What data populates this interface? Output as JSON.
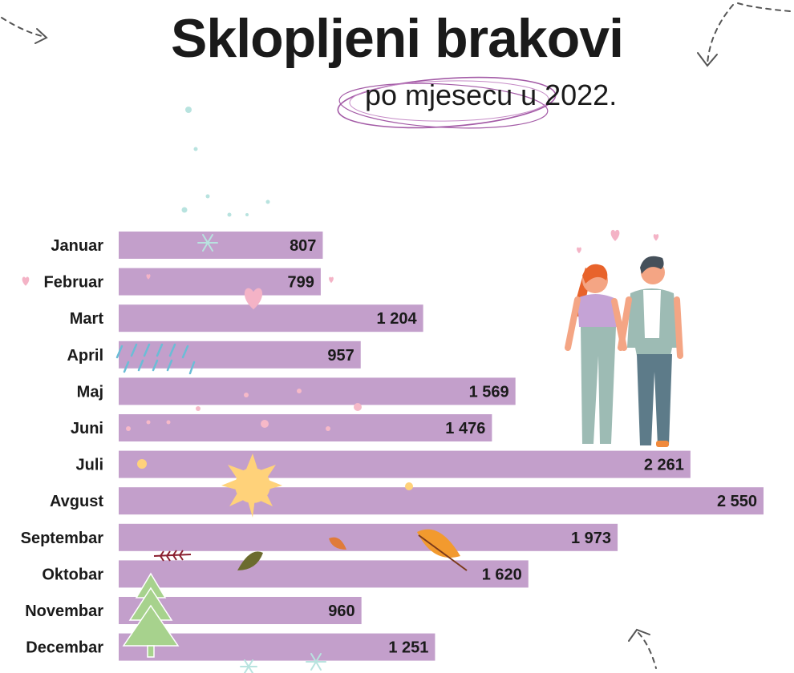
{
  "chart_data": {
    "type": "bar",
    "orientation": "horizontal",
    "title": "Sklopljeni brakovi",
    "subtitle": "po mjesecu u 2022.",
    "categories": [
      "Januar",
      "Februar",
      "Mart",
      "April",
      "Maj",
      "Juni",
      "Juli",
      "Avgust",
      "Septembar",
      "Oktobar",
      "Novembar",
      "Decembar"
    ],
    "values": [
      807,
      799,
      1204,
      957,
      1569,
      1476,
      2261,
      2550,
      1973,
      1620,
      960,
      1251
    ],
    "value_labels": [
      "807",
      "799",
      "1 204",
      "957",
      "1 569",
      "1 476",
      "2 261",
      "2 550",
      "1 973",
      "1 620",
      "960",
      "1 251"
    ],
    "xlim": [
      0,
      2550
    ],
    "xlabel": "",
    "ylabel": "",
    "grid": false,
    "legend": "none",
    "bar_color": "#c39fcb",
    "highlight_color": "#a35aa6"
  },
  "decorations": {
    "icons": [
      "snowflake-icon",
      "heart-icon",
      "rain-icon",
      "flower-icon",
      "sun-icon",
      "leaf-icon",
      "tree-icon",
      "couple-illustration",
      "arrow-icon"
    ]
  }
}
